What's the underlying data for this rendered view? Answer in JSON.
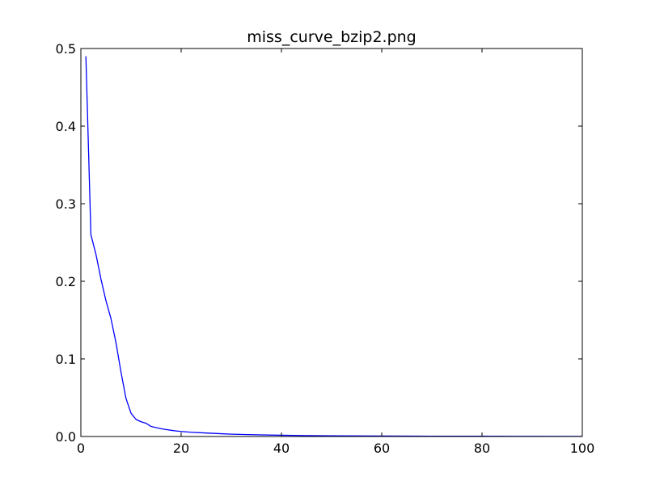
{
  "chart_data": {
    "type": "line",
    "title": "miss_curve_bzip2.png",
    "xlabel": "",
    "ylabel": "",
    "xlim": [
      0,
      100
    ],
    "ylim": [
      0.0,
      0.5
    ],
    "x_ticks": [
      0,
      20,
      40,
      60,
      80,
      100
    ],
    "x_tick_labels": [
      "0",
      "20",
      "40",
      "60",
      "80",
      "100"
    ],
    "y_ticks": [
      0.0,
      0.1,
      0.2,
      0.3,
      0.4,
      0.5
    ],
    "y_tick_labels": [
      "0.0",
      "0.1",
      "0.2",
      "0.3",
      "0.4",
      "0.5"
    ],
    "grid": false,
    "legend": "none",
    "series": [
      {
        "color": "#0000ff",
        "x": [
          1,
          2,
          3,
          4,
          5,
          6,
          7,
          8,
          9,
          10,
          11,
          12,
          13,
          14,
          15,
          16,
          17,
          18,
          19,
          20,
          22,
          25,
          28,
          30,
          35,
          40,
          45,
          50,
          60,
          70,
          80,
          90,
          100
        ],
        "y": [
          0.49,
          0.26,
          0.235,
          0.203,
          0.175,
          0.152,
          0.121,
          0.083,
          0.049,
          0.03,
          0.022,
          0.019,
          0.017,
          0.013,
          0.0115,
          0.01,
          0.009,
          0.008,
          0.0072,
          0.0065,
          0.0055,
          0.0045,
          0.0036,
          0.003,
          0.0022,
          0.0016,
          0.0012,
          0.0009,
          0.0006,
          0.0004,
          0.0003,
          0.0002,
          0.0001
        ]
      }
    ]
  }
}
